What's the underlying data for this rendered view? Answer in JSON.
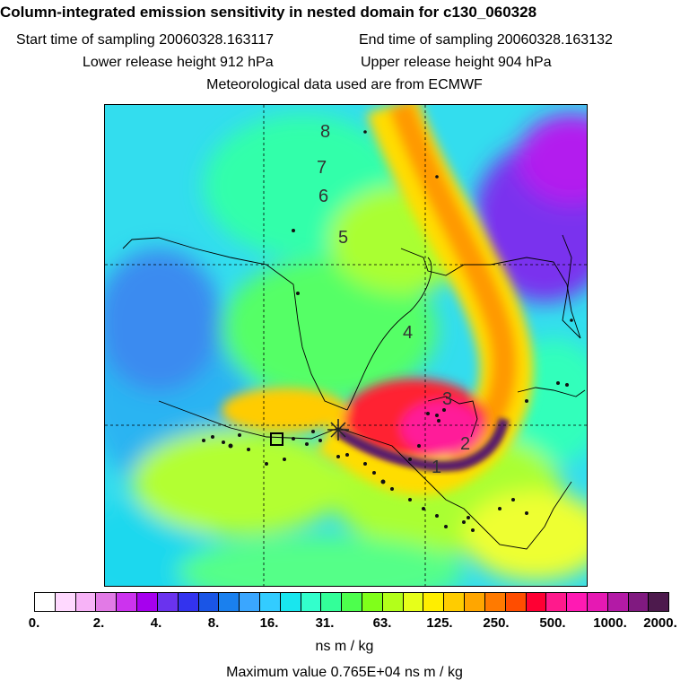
{
  "header": {
    "title": "Column-integrated emission sensitivity in nested domain for c130_060328",
    "start_label": "Start time of sampling",
    "start_value": "20060328.163117",
    "end_label": "End time of sampling",
    "end_value": "20060328.163132",
    "lower_label": "Lower release height",
    "lower_value": "912 hPa",
    "upper_label": "Upper release height",
    "upper_value": "904 hPa",
    "met_line": "Meteorological data used are from ECMWF"
  },
  "map": {
    "day_labels": [
      "8",
      "7",
      "6",
      "5",
      "4",
      "3",
      "2",
      "1"
    ]
  },
  "colorbar": {
    "colors": [
      "#ffffff",
      "#ffd9ff",
      "#f7b3f7",
      "#e27ae6",
      "#cc33ee",
      "#a600ee",
      "#6a33ee",
      "#3333ee",
      "#1a55e6",
      "#1a80ee",
      "#3aa6ff",
      "#33ccff",
      "#19e6ee",
      "#33ffcc",
      "#33ff99",
      "#4dff4d",
      "#80ff1a",
      "#b3ff1a",
      "#e6ff1a",
      "#ffee00",
      "#ffcc00",
      "#ffa600",
      "#ff7a00",
      "#ff4d00",
      "#ff0033",
      "#ff1a8c",
      "#ff1ab3",
      "#e619b3",
      "#b31aa6",
      "#801a80",
      "#4d1a4d"
    ],
    "tick_labels": [
      "0.",
      "2.",
      "4.",
      "8.",
      "16.",
      "31.",
      "63.",
      "125.",
      "250.",
      "500.",
      "1000.",
      "2000."
    ],
    "unit": "ns m / kg",
    "max_label": "Maximum value",
    "max_value": "0.765E+04 ns m / kg"
  }
}
